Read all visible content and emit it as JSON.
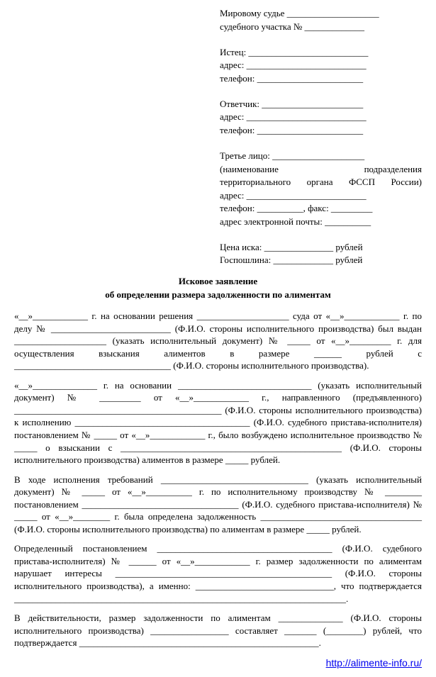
{
  "header": {
    "judge_line": "Мировому судье ____________________",
    "district_line": "судебного участка № _____________",
    "plaintiff": "Истец: __________________________",
    "plaintiff_addr": "адрес: __________________________",
    "plaintiff_phone": "телефон: _______________________",
    "defendant": "Ответчик: ______________________",
    "defendant_addr": "адрес: __________________________",
    "defendant_phone": "телефон: _______________________",
    "third_party": "Третье лицо: ____________________",
    "third_party_desc1": "(наименование подразделения",
    "third_party_desc2": "территориального органа ФССП России)",
    "third_addr": "адрес: __________________________",
    "third_phone": "телефон: __________, факс: _________",
    "third_email": "адрес электронной почты: __________",
    "price": "Цена иска: _______________ рублей",
    "fee": "Госпошлина: _____________ рублей"
  },
  "title": "Исковое заявление",
  "subtitle": "об определении размера задолженности по алиментам",
  "p1": "«__»____________ г. на основании решения ____________________ суда от «__»____________ г. по делу № __________________________ (Ф.И.О. стороны исполнительного производства) был выдан ____________________ (указать исполнительный документ) № _____ от «__»_________ г. для осуществления взыскания алиментов в размере ______ рублей с __________________________________ (Ф.И.О. стороны исполнительного производства).",
  "p2": "«__»______________ г. на основании _____________________________ (указать исполнительный документ) № _________ от «__»____________ г., направленного (предъявленного) _____________________________________________ (Ф.И.О. стороны исполнительного производства) к исполнению ______________________________________ (Ф.И.О. судебного пристава-исполнителя) постановлением № _____ от «__»____________ г., было возбуждено исполнительное производство № _____ о взыскании с ________________________________________________ (Ф.И.О. стороны исполнительного производства) алиментов в размере _____ рублей.",
  "p3": "В ходе исполнения требований ________________________________ (указать исполнительный документ) № _____ от «__»__________ г. по исполнительному производству № ________ постановлением __________________________________ (Ф.И.О. судебного пристава-исполнителя) № _____ от «__»________ г. была определена задолженность ___________________________________ (Ф.И.О. стороны исполнительного производства) по алиментам в размере _____ рублей.",
  "p4": "Определенный постановлением ______________________________________ (Ф.И.О. судебного пристава-исполнителя) № ______ от «__»____________ г. размер задолженности по алиментам нарушает интересы _______________________________________________ (Ф.И.О. стороны исполнительного производства), а именно: ______________________________, что подтверждается ________________________________________________________________________.",
  "p5": "В действительности, размер задолженности по алиментам ______________ (Ф.И.О. стороны исполнительного производства) _________________ составляет _______ (________) рублей, что подтверждается ____________________________________________________.",
  "footer_url": "http://alimente-info.ru/"
}
